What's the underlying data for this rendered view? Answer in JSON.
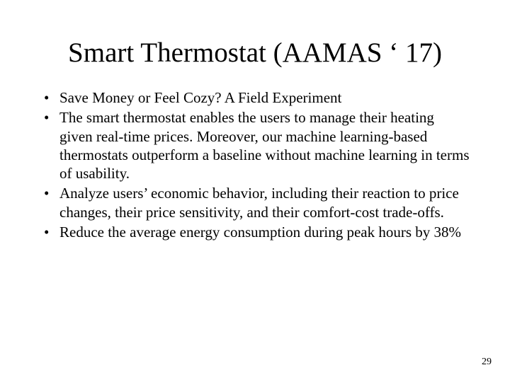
{
  "slide": {
    "title": "Smart Thermostat (AAMAS ‘ 17)",
    "bullets": [
      "Save Money or Feel Cozy? A Field Experiment",
      "The smart thermostat enables the users to manage their heating given real-time prices. Moreover, our machine learning-based thermostats outperform a baseline without machine learning in terms of usability.",
      "Analyze users’ economic behavior, including their reaction to price changes, their price sensitivity, and their comfort-cost trade-offs.",
      "Reduce the average energy consumption during peak hours by 38%"
    ],
    "page_number": "29"
  },
  "style": {
    "background_color": "#ffffff",
    "text_color": "#000000",
    "title_fontsize": 39,
    "body_fontsize": 21,
    "page_number_fontsize": 14,
    "font_family": "Times New Roman"
  }
}
